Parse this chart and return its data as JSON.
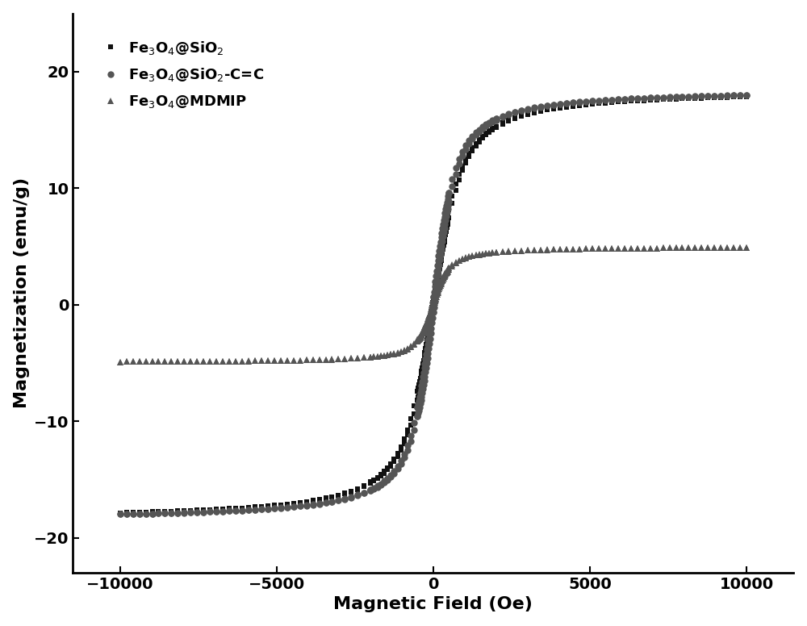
{
  "title": "",
  "xlabel": "Magnetic Field (Oe)",
  "ylabel": "Magnetization (emu/g)",
  "xlim": [
    -11500,
    11500
  ],
  "ylim": [
    -23,
    25
  ],
  "xticks": [
    -10000,
    -5000,
    0,
    5000,
    10000
  ],
  "yticks": [
    -20,
    -10,
    0,
    10,
    20
  ],
  "legend_labels": [
    "Fe$_3$O$_4$@SiO$_2$",
    "Fe$_3$O$_4$@SiO$_2$-C=C",
    "Fe$_3$O$_4$@MDMIP"
  ],
  "series1_color": "#111111",
  "series2_color": "#555555",
  "series3_color": "#555555",
  "sat1": 18.5,
  "sat2": 18.5,
  "sat3": 5.0,
  "a1": 350,
  "a2": 280,
  "a3": 200,
  "Hc1": 30,
  "Hc2": 30,
  "Hc3": 20,
  "background_color": "#ffffff",
  "marker_size1": 5,
  "marker_size2": 6,
  "marker_size3": 6,
  "label_fontsize": 16,
  "tick_fontsize": 14,
  "legend_fontsize": 13,
  "n_points": 80
}
